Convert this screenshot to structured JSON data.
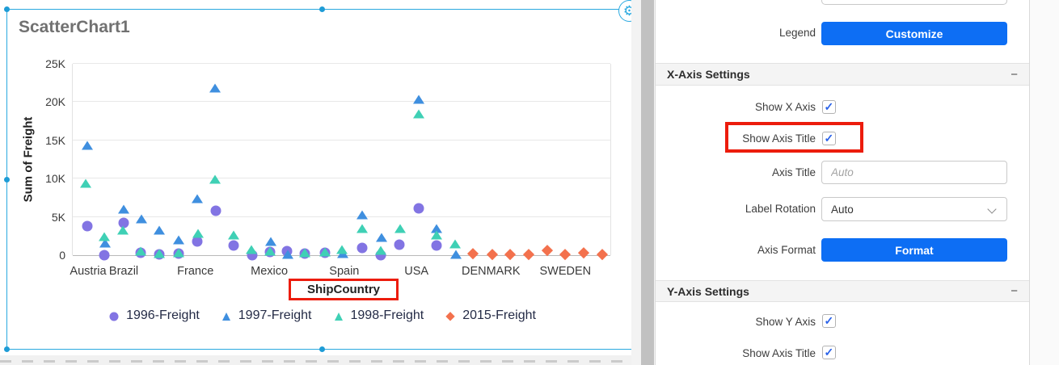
{
  "icons": {
    "gear": "⚙",
    "collapse_minus": "−"
  },
  "accent": {
    "button_blue": "#0d6ef4",
    "selection_blue": "#2aa9e0",
    "annotation_red": "#ec1c0c"
  },
  "widget": {
    "title": "ScatterChart1"
  },
  "chart_data": {
    "type": "scatter",
    "title": "ScatterChart1",
    "xlabel": "ShipCountry",
    "ylabel": "Sum of Freight",
    "ylim": [
      0,
      25000
    ],
    "y_ticks": [
      "0",
      "5K",
      "10K",
      "15K",
      "20K",
      "25K"
    ],
    "grid": true,
    "legend_position": "bottom",
    "annotations": [
      "red box around x-axis title ShipCountry",
      "red box around Show Axis Title setting"
    ],
    "categories": [
      {
        "label": "Austria",
        "x": 0.03
      },
      {
        "label": "Brazil",
        "x": 0.096
      },
      {
        "label": "France",
        "x": 0.229
      },
      {
        "label": "Mexico",
        "x": 0.366
      },
      {
        "label": "Spain",
        "x": 0.505
      },
      {
        "label": "USA",
        "x": 0.639
      },
      {
        "label": "DENMARK",
        "x": 0.777
      },
      {
        "label": "SWEDEN",
        "x": 0.915
      }
    ],
    "series": [
      {
        "name": "1996-Freight",
        "marker": "circle",
        "color": "#8274e3",
        "points": [
          [
            0.027,
            3850
          ],
          [
            0.058,
            50
          ],
          [
            0.094,
            4200
          ],
          [
            0.126,
            300
          ],
          [
            0.16,
            100
          ],
          [
            0.196,
            200
          ],
          [
            0.231,
            1800
          ],
          [
            0.265,
            5750
          ],
          [
            0.298,
            1250
          ],
          [
            0.333,
            50
          ],
          [
            0.366,
            400
          ],
          [
            0.397,
            500
          ],
          [
            0.43,
            250
          ],
          [
            0.468,
            300
          ],
          [
            0.537,
            950
          ],
          [
            0.571,
            50
          ],
          [
            0.606,
            1400
          ],
          [
            0.642,
            6100
          ],
          [
            0.675,
            1250
          ]
        ]
      },
      {
        "name": "1997-Freight",
        "marker": "triangle",
        "color": "#3f8fdf",
        "points": [
          [
            0.027,
            14300
          ],
          [
            0.06,
            1600
          ],
          [
            0.094,
            6050
          ],
          [
            0.127,
            4700
          ],
          [
            0.16,
            3300
          ],
          [
            0.196,
            2000
          ],
          [
            0.231,
            7400
          ],
          [
            0.264,
            21800
          ],
          [
            0.367,
            1800
          ],
          [
            0.399,
            100
          ],
          [
            0.501,
            250
          ],
          [
            0.537,
            5250
          ],
          [
            0.573,
            2350
          ],
          [
            0.642,
            20400
          ],
          [
            0.675,
            3500
          ],
          [
            0.711,
            100
          ]
        ]
      },
      {
        "name": "1998-Freight",
        "marker": "triangle",
        "color": "#3fd0b5",
        "points": [
          [
            0.024,
            9400
          ],
          [
            0.058,
            2400
          ],
          [
            0.093,
            3300
          ],
          [
            0.126,
            500
          ],
          [
            0.16,
            250
          ],
          [
            0.196,
            350
          ],
          [
            0.232,
            2800
          ],
          [
            0.264,
            9950
          ],
          [
            0.298,
            2600
          ],
          [
            0.331,
            700
          ],
          [
            0.366,
            550
          ],
          [
            0.43,
            350
          ],
          [
            0.468,
            400
          ],
          [
            0.499,
            750
          ],
          [
            0.537,
            3500
          ],
          [
            0.571,
            600
          ],
          [
            0.607,
            3500
          ],
          [
            0.642,
            18500
          ],
          [
            0.675,
            2600
          ],
          [
            0.709,
            1450
          ]
        ]
      },
      {
        "name": "2015-Freight",
        "marker": "diamond",
        "color": "#f3714d",
        "points": [
          [
            0.742,
            200
          ],
          [
            0.778,
            150
          ],
          [
            0.811,
            150
          ],
          [
            0.846,
            150
          ],
          [
            0.88,
            650
          ],
          [
            0.913,
            150
          ],
          [
            0.947,
            350
          ],
          [
            0.982,
            150
          ]
        ]
      }
    ]
  },
  "panel": {
    "legend_row": {
      "label": "Legend",
      "button": "Customize"
    },
    "x_axis": {
      "title": "X-Axis Settings",
      "show_x_axis_label": "Show X Axis",
      "show_x_axis_checked": true,
      "show_axis_title_label": "Show Axis Title",
      "show_axis_title_checked": true,
      "axis_title_label": "Axis Title",
      "axis_title_placeholder": "Auto",
      "axis_title_value": "",
      "label_rotation_label": "Label Rotation",
      "label_rotation_value": "Auto",
      "axis_format_label": "Axis Format",
      "format_button": "Format"
    },
    "y_axis": {
      "title": "Y-Axis Settings",
      "show_y_axis_label": "Show Y Axis",
      "show_y_axis_checked": true,
      "show_axis_title_label": "Show Axis Title",
      "show_axis_title_checked": true
    }
  }
}
